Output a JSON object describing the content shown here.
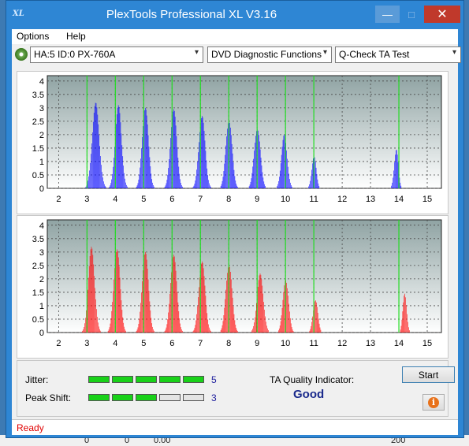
{
  "window": {
    "title": "PlexTools Professional XL V3.16",
    "icon_text": "XL",
    "min_symbol": "—",
    "max_symbol": "□",
    "close_symbol": "✕"
  },
  "menu": {
    "options": "Options",
    "help": "Help"
  },
  "toolbar": {
    "drive": "HA:5 ID:0  PX-760A",
    "function": "DVD Diagnostic Functions",
    "test": "Q-Check TA Test",
    "arrow": "▾"
  },
  "results": {
    "jitter_label": "Jitter:",
    "jitter_level": 5,
    "jitter_value": "5",
    "peak_label": "Peak Shift:",
    "peak_level": 3,
    "peak_value": "3",
    "ta_label": "TA Quality Indicator:",
    "ta_value": "Good",
    "start_label": "Start",
    "info_symbol": "i"
  },
  "status": {
    "text": "Ready"
  },
  "desktop": {
    "bottom_values": [
      "0",
      "0",
      "0.00",
      "200"
    ]
  },
  "chart_data": [
    {
      "type": "bar",
      "title": "",
      "series_color": "#0000ff",
      "x_ticks": [
        2,
        3,
        4,
        5,
        6,
        7,
        8,
        9,
        10,
        11,
        12,
        13,
        14,
        15
      ],
      "y_ticks": [
        0,
        0.5,
        1,
        1.5,
        2,
        2.5,
        3,
        3.5,
        4
      ],
      "xlim": [
        1.6,
        15.5
      ],
      "ylim": [
        0,
        4.2
      ],
      "green_lines": [
        3,
        4,
        5,
        6,
        7,
        8,
        9,
        10,
        11,
        14
      ],
      "peaks": [
        {
          "center": 3.3,
          "height": 3.2,
          "width": 0.22
        },
        {
          "center": 4.1,
          "height": 3.1,
          "width": 0.2
        },
        {
          "center": 5.05,
          "height": 3.0,
          "width": 0.2
        },
        {
          "center": 6.05,
          "height": 2.95,
          "width": 0.2
        },
        {
          "center": 7.05,
          "height": 2.7,
          "width": 0.2
        },
        {
          "center": 8.0,
          "height": 2.5,
          "width": 0.2
        },
        {
          "center": 9.0,
          "height": 2.2,
          "width": 0.2
        },
        {
          "center": 9.95,
          "height": 2.0,
          "width": 0.18
        },
        {
          "center": 11.0,
          "height": 1.2,
          "width": 0.14
        },
        {
          "center": 13.9,
          "height": 1.45,
          "width": 0.13
        }
      ]
    },
    {
      "type": "bar",
      "title": "",
      "series_color": "#ff0000",
      "x_ticks": [
        2,
        3,
        4,
        5,
        6,
        7,
        8,
        9,
        10,
        11,
        12,
        13,
        14,
        15
      ],
      "y_ticks": [
        0,
        0.5,
        1,
        1.5,
        2,
        2.5,
        3,
        3.5,
        4
      ],
      "xlim": [
        1.6,
        15.5
      ],
      "ylim": [
        0,
        4.2
      ],
      "green_lines": [
        3,
        4,
        5,
        6,
        7,
        8,
        9,
        10,
        11,
        14
      ],
      "peaks": [
        {
          "center": 3.15,
          "height": 3.2,
          "width": 0.2
        },
        {
          "center": 4.05,
          "height": 3.1,
          "width": 0.2
        },
        {
          "center": 5.05,
          "height": 3.0,
          "width": 0.2
        },
        {
          "center": 6.05,
          "height": 2.9,
          "width": 0.2
        },
        {
          "center": 7.05,
          "height": 2.65,
          "width": 0.2
        },
        {
          "center": 8.0,
          "height": 2.5,
          "width": 0.2
        },
        {
          "center": 9.1,
          "height": 2.2,
          "width": 0.2
        },
        {
          "center": 10.0,
          "height": 1.95,
          "width": 0.18
        },
        {
          "center": 11.05,
          "height": 1.2,
          "width": 0.15
        },
        {
          "center": 14.2,
          "height": 1.45,
          "width": 0.12
        }
      ]
    }
  ]
}
